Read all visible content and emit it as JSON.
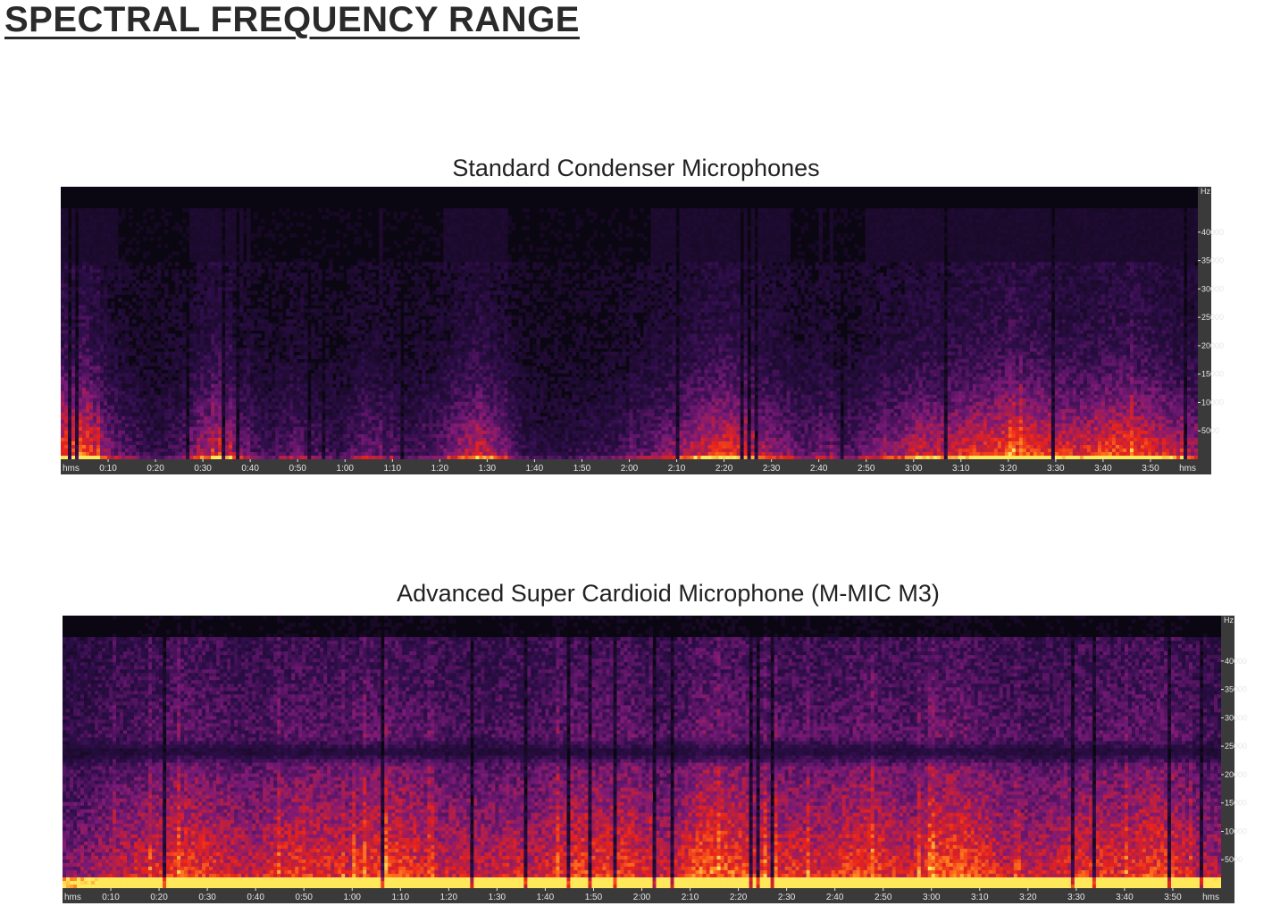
{
  "page": {
    "title": "SPECTRAL FREQUENCY RANGE"
  },
  "colors": {
    "spectrogram_low": "#0b0712",
    "spectrogram_mid": "#7a1a78",
    "spectrogram_high": "#e8231b",
    "spectrogram_peak": "#ffe85a",
    "axis_background": "#3a3a3a",
    "axis_text": "#e6e6e6"
  },
  "chart_data": [
    {
      "type": "heatmap",
      "title": "Standard Condenser Microphones",
      "x_unit_label": "hms",
      "y_unit_label": "Hz",
      "x_range_seconds": [
        0,
        240
      ],
      "y_range_hz": [
        0,
        48000
      ],
      "x_ticks": [
        "0:10",
        "0:20",
        "0:30",
        "0:40",
        "0:50",
        "1:00",
        "1:10",
        "1:20",
        "1:30",
        "1:40",
        "1:50",
        "2:00",
        "2:10",
        "2:20",
        "2:30",
        "2:40",
        "2:50",
        "3:00",
        "3:10",
        "3:20",
        "3:30",
        "3:40",
        "3:50"
      ],
      "y_ticks": [
        40000,
        35000,
        30000,
        25000,
        20000,
        15000,
        10000,
        5000
      ],
      "energy_ceiling_hz": 35000,
      "energy_profile": [
        0.85,
        0.92,
        0.55,
        0.4,
        0.3,
        0.38,
        0.65,
        0.7,
        0.45,
        0.35,
        0.48,
        0.38,
        0.3,
        0.5,
        0.42,
        0.35,
        0.4,
        0.6,
        0.75,
        0.55,
        0.3,
        0.25,
        0.28,
        0.32,
        0.35,
        0.45,
        0.55,
        0.65,
        0.78,
        0.82,
        0.7,
        0.55,
        0.45,
        0.5,
        0.38,
        0.55,
        0.58,
        0.72,
        0.7,
        0.78,
        0.82,
        0.88,
        0.86,
        0.8,
        0.75,
        0.85,
        0.88,
        0.82,
        0.7,
        0.62
      ]
    },
    {
      "type": "heatmap",
      "title": "Advanced Super Cardioid Microphone (M-MIC M3)",
      "x_unit_label": "hms",
      "y_unit_label": "Hz",
      "x_range_seconds": [
        0,
        240
      ],
      "y_range_hz": [
        0,
        48000
      ],
      "x_ticks": [
        "0:10",
        "0:20",
        "0:30",
        "0:40",
        "0:50",
        "1:00",
        "1:10",
        "1:20",
        "1:30",
        "1:40",
        "1:50",
        "2:00",
        "2:10",
        "2:20",
        "2:30",
        "2:40",
        "2:50",
        "3:00",
        "3:10",
        "3:20",
        "3:30",
        "3:40",
        "3:50"
      ],
      "y_ticks": [
        40000,
        35000,
        30000,
        25000,
        20000,
        15000,
        10000,
        5000
      ],
      "notch_hz": 24000,
      "energy_profile": [
        0.55,
        0.6,
        0.68,
        0.72,
        0.78,
        0.85,
        0.8,
        0.75,
        0.7,
        0.78,
        0.82,
        0.8,
        0.76,
        0.84,
        0.86,
        0.8,
        0.72,
        0.74,
        0.7,
        0.75,
        0.72,
        0.8,
        0.85,
        0.82,
        0.86,
        0.7,
        0.75,
        0.92,
        0.9,
        0.85,
        0.78,
        0.8,
        0.76,
        0.82,
        0.86,
        0.8,
        0.76,
        0.88,
        0.9,
        0.84,
        0.72,
        0.7,
        0.75,
        0.8,
        0.82,
        0.78,
        0.86,
        0.84,
        0.7,
        0.66
      ]
    }
  ]
}
